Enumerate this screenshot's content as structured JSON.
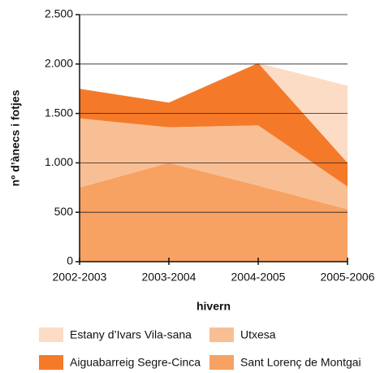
{
  "chart_data": {
    "type": "stacked_area",
    "x_label": "hivern",
    "y_label": "nº d’ànecs i fotjes",
    "categories": [
      "2002-2003",
      "2003-2004",
      "2004-2005",
      "2005-2006"
    ],
    "series": [
      {
        "name": "Sant Lorenç de Montgai",
        "color": "#f7a262",
        "values": [
          750,
          1000,
          770,
          530
        ]
      },
      {
        "name": "Utxesa",
        "color": "#f9bf94",
        "values": [
          700,
          360,
          610,
          230
        ]
      },
      {
        "name": "Aiguabarreig Segre-Cinca",
        "color": "#f47a2a",
        "values": [
          300,
          250,
          630,
          240
        ]
      },
      {
        "name": "Estany d’Ivars Vila-sana",
        "color": "#fcdcc4",
        "values": [
          0,
          0,
          0,
          780
        ]
      }
    ],
    "ylim": [
      0,
      2500
    ],
    "yticks": [
      0,
      500,
      {
        "value": 1000,
        "label": "1.000"
      },
      {
        "value": 1500,
        "label": "1.500"
      },
      {
        "value": 2000,
        "label": "2.000"
      },
      {
        "value": 2500,
        "label": "2.500"
      }
    ],
    "grid": true
  }
}
